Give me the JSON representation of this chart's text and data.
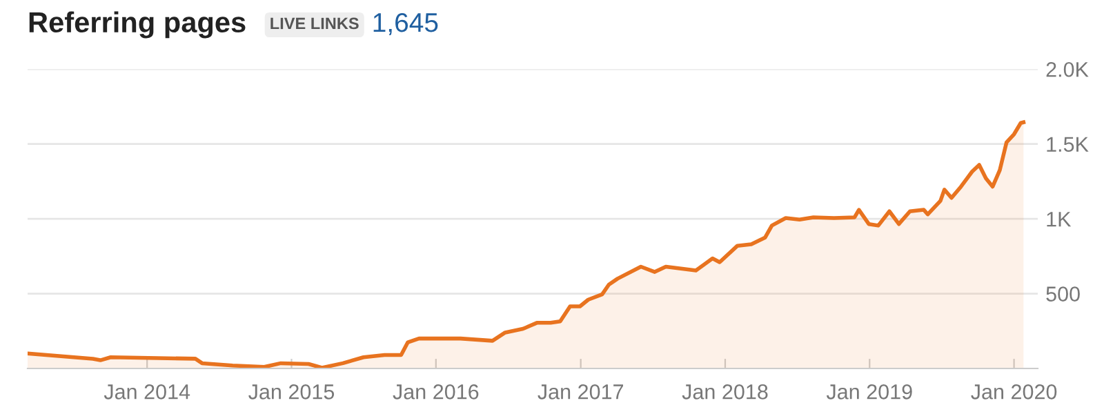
{
  "chart_data": {
    "type": "area",
    "title": "Referring pages",
    "annotations": [
      "LIVE LINKS",
      "1,645"
    ],
    "x": [
      "2013-03-05",
      "2013-08-17",
      "2013-09-05",
      "2013-10-01",
      "2014-05-03",
      "2014-05-20",
      "2014-08-05",
      "2014-10-24",
      "2014-12-05",
      "2015-02-13",
      "2015-03-19",
      "2015-05-11",
      "2015-07-02",
      "2015-08-24",
      "2015-10-05",
      "2015-10-22",
      "2015-11-19",
      "2016-03-03",
      "2016-05-23",
      "2016-06-24",
      "2016-08-08",
      "2016-09-12",
      "2016-10-17",
      "2016-11-10",
      "2016-12-05",
      "2016-12-30",
      "2017-01-20",
      "2017-02-24",
      "2017-03-13",
      "2017-04-04",
      "2017-06-02",
      "2017-07-07",
      "2017-08-04",
      "2017-10-02",
      "2017-10-19",
      "2017-11-30",
      "2017-12-18",
      "2018-02-01",
      "2018-03-08",
      "2018-04-12",
      "2018-04-29",
      "2018-06-03",
      "2018-07-08",
      "2018-08-12",
      "2018-10-03",
      "2018-11-24",
      "2018-12-05",
      "2018-12-30",
      "2019-01-23",
      "2019-02-20",
      "2019-03-16",
      "2019-04-13",
      "2019-05-18",
      "2019-05-28",
      "2019-06-29",
      "2019-07-09",
      "2019-07-27",
      "2019-08-20",
      "2019-09-17",
      "2019-10-05",
      "2019-10-22",
      "2019-11-08",
      "2019-11-26",
      "2019-12-13",
      "2020-01-01",
      "2020-01-18",
      "2020-01-25"
    ],
    "series": [
      {
        "color": "#e8731f",
        "values": [
          100,
          65,
          55,
          75,
          65,
          35,
          20,
          10,
          35,
          30,
          5,
          35,
          75,
          90,
          90,
          175,
          200,
          200,
          185,
          240,
          265,
          305,
          305,
          315,
          415,
          415,
          460,
          495,
          560,
          600,
          680,
          645,
          680,
          660,
          655,
          735,
          710,
          820,
          830,
          875,
          955,
          1005,
          995,
          1010,
          1005,
          1010,
          1060,
          965,
          955,
          1050,
          965,
          1050,
          1060,
          1030,
          1120,
          1195,
          1140,
          1215,
          1315,
          1360,
          1270,
          1215,
          1325,
          1510,
          1565,
          1640,
          1645
        ]
      }
    ],
    "xlim": [
      "2013-03-05",
      "2020-03-01"
    ],
    "xticks": [
      {
        "value": "2014-01-01",
        "label": "Jan 2014"
      },
      {
        "value": "2015-01-01",
        "label": "Jan 2015"
      },
      {
        "value": "2016-01-01",
        "label": "Jan 2016"
      },
      {
        "value": "2017-01-01",
        "label": "Jan 2017"
      },
      {
        "value": "2018-01-01",
        "label": "Jan 2018"
      },
      {
        "value": "2019-01-01",
        "label": "Jan 2019"
      },
      {
        "value": "2020-01-01",
        "label": "Jan 2020"
      }
    ],
    "ylim": [
      0,
      2000
    ],
    "yticks": [
      {
        "value": 500,
        "label": "500"
      },
      {
        "value": 1000,
        "label": "1K"
      },
      {
        "value": 1500,
        "label": "1.5K"
      },
      {
        "value": 2000,
        "label": "2.0K"
      }
    ],
    "grid": "y",
    "legend": false
  }
}
